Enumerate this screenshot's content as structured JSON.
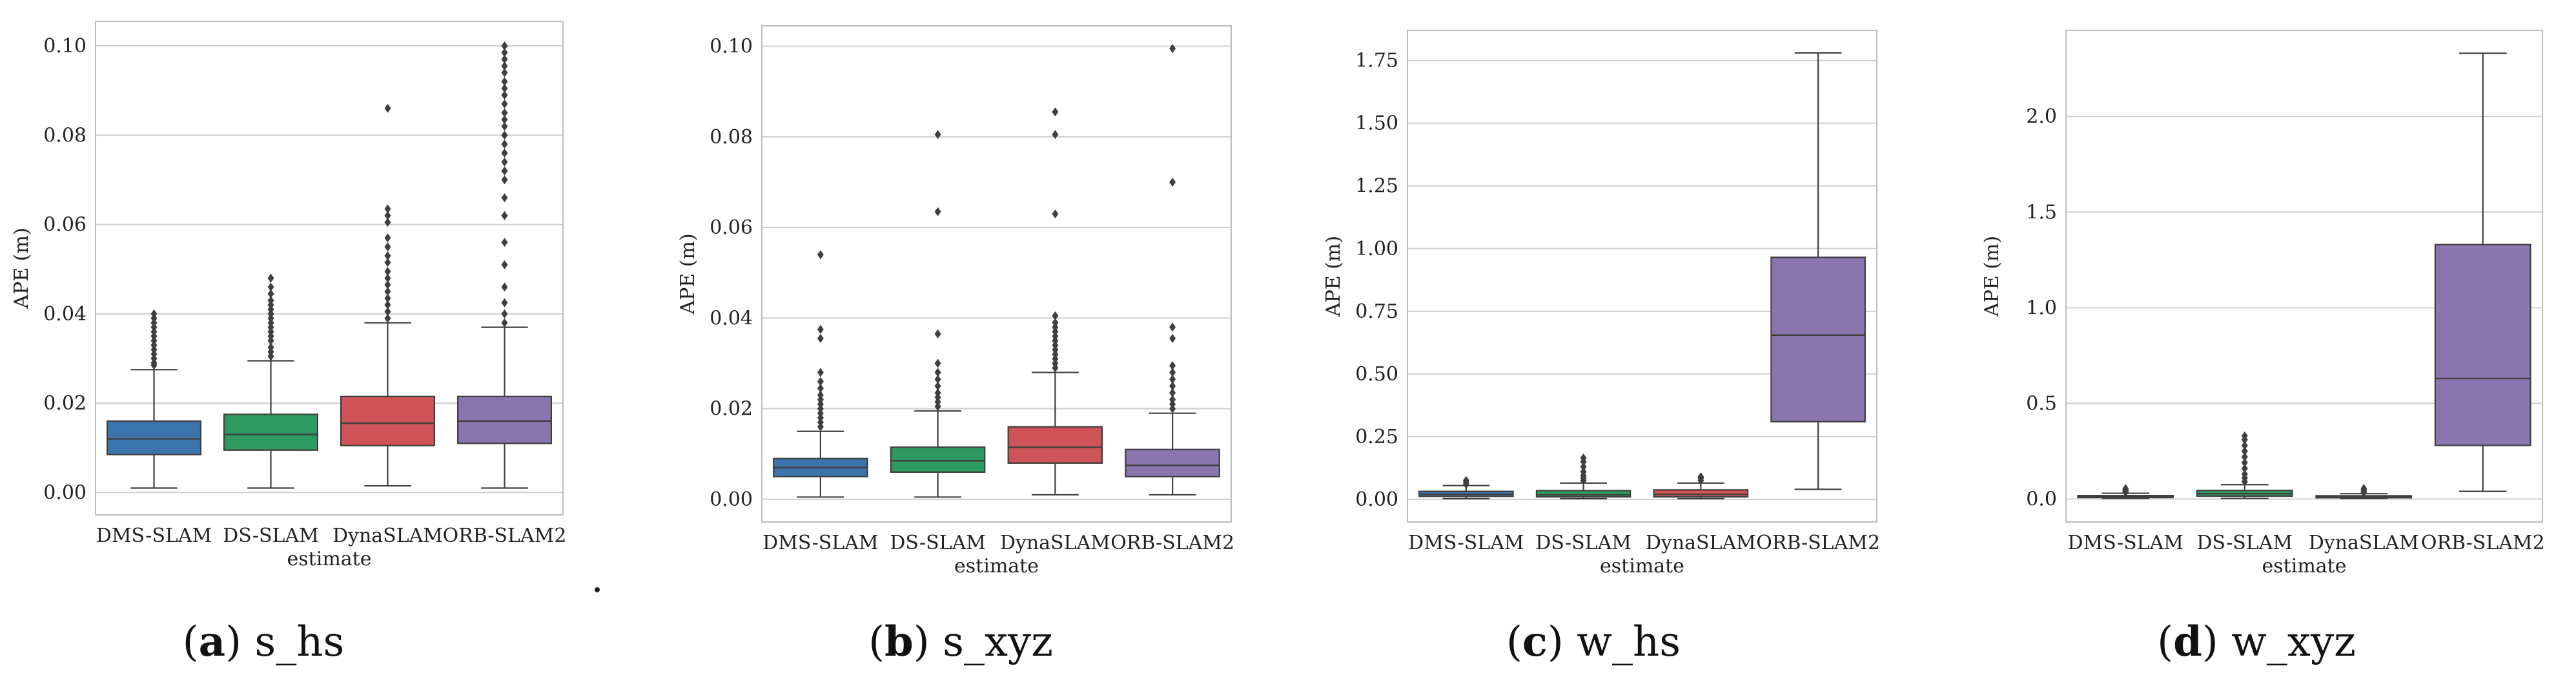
{
  "chart_data": [
    {
      "type": "box",
      "caption_letter": "a",
      "caption_text": "s_hs",
      "xlabel": "estimate",
      "ylabel": "APE (m)",
      "categories": [
        "DMS-SLAM",
        "DS-SLAM",
        "DynaSLAM",
        "ORB-SLAM2"
      ],
      "yticks": [
        "0.00",
        "0.02",
        "0.04",
        "0.06",
        "0.08",
        "0.10"
      ],
      "ylim": [
        -0.005,
        0.1055
      ],
      "series": [
        {
          "name": "DMS-SLAM",
          "color": "#3b74ab",
          "whislo": 0.001,
          "q1": 0.0085,
          "median": 0.012,
          "q3": 0.016,
          "whishi": 0.0275,
          "outliers": [
            0.0285,
            0.029,
            0.03,
            0.031,
            0.032,
            0.033,
            0.034,
            0.035,
            0.036,
            0.037,
            0.038,
            0.039,
            0.04
          ]
        },
        {
          "name": "DS-SLAM",
          "color": "#2e9a62",
          "whislo": 0.001,
          "q1": 0.0095,
          "median": 0.013,
          "q3": 0.0175,
          "whishi": 0.0295,
          "outliers": [
            0.0305,
            0.0315,
            0.0325,
            0.034,
            0.035,
            0.036,
            0.037,
            0.038,
            0.039,
            0.04,
            0.041,
            0.042,
            0.043,
            0.0445,
            0.046,
            0.048
          ]
        },
        {
          "name": "DynaSLAM",
          "color": "#cf5457",
          "whislo": 0.0015,
          "q1": 0.0105,
          "median": 0.0155,
          "q3": 0.0215,
          "whishi": 0.038,
          "outliers": [
            0.039,
            0.0405,
            0.042,
            0.0435,
            0.045,
            0.0465,
            0.048,
            0.0495,
            0.0515,
            0.053,
            0.055,
            0.057,
            0.0605,
            0.062,
            0.0635,
            0.086
          ]
        },
        {
          "name": "ORB-SLAM2",
          "color": "#8976b1",
          "whislo": 0.001,
          "q1": 0.011,
          "median": 0.016,
          "q3": 0.0215,
          "whishi": 0.037,
          "outliers": [
            0.038,
            0.04,
            0.0425,
            0.046,
            0.051,
            0.056,
            0.062,
            0.066,
            0.07,
            0.072,
            0.074,
            0.076,
            0.078,
            0.08,
            0.082,
            0.0835,
            0.085,
            0.087,
            0.089,
            0.0905,
            0.092,
            0.094,
            0.0955,
            0.097,
            0.0985,
            0.1
          ]
        }
      ]
    },
    {
      "type": "box",
      "caption_letter": "b",
      "caption_text": "s_xyz",
      "xlabel": "estimate",
      "ylabel": "APE (m)",
      "categories": [
        "DMS-SLAM",
        "DS-SLAM",
        "DynaSLAM",
        "ORB-SLAM2"
      ],
      "yticks": [
        "0.00",
        "0.02",
        "0.04",
        "0.06",
        "0.08",
        "0.10"
      ],
      "ylim": [
        -0.005,
        0.1045
      ],
      "series": [
        {
          "name": "DMS-SLAM",
          "color": "#3b74ab",
          "whislo": 0.0005,
          "q1": 0.005,
          "median": 0.007,
          "q3": 0.009,
          "whishi": 0.015,
          "outliers": [
            0.016,
            0.017,
            0.018,
            0.019,
            0.02,
            0.021,
            0.022,
            0.023,
            0.0245,
            0.026,
            0.028,
            0.0355,
            0.0375,
            0.054
          ]
        },
        {
          "name": "DS-SLAM",
          "color": "#2e9a62",
          "whislo": 0.0005,
          "q1": 0.006,
          "median": 0.0085,
          "q3": 0.0115,
          "whishi": 0.0195,
          "outliers": [
            0.0205,
            0.0215,
            0.0225,
            0.0235,
            0.025,
            0.0265,
            0.028,
            0.03,
            0.0365,
            0.0635,
            0.0805
          ]
        },
        {
          "name": "DynaSLAM",
          "color": "#cf5457",
          "whislo": 0.001,
          "q1": 0.008,
          "median": 0.0115,
          "q3": 0.016,
          "whishi": 0.028,
          "outliers": [
            0.029,
            0.03,
            0.031,
            0.032,
            0.033,
            0.034,
            0.035,
            0.036,
            0.037,
            0.038,
            0.039,
            0.0405,
            0.063,
            0.0805,
            0.0855
          ]
        },
        {
          "name": "ORB-SLAM2",
          "color": "#8976b1",
          "whislo": 0.001,
          "q1": 0.005,
          "median": 0.0075,
          "q3": 0.011,
          "whishi": 0.019,
          "outliers": [
            0.02,
            0.021,
            0.022,
            0.0235,
            0.025,
            0.0265,
            0.028,
            0.0295,
            0.0355,
            0.038,
            0.07,
            0.0995
          ]
        }
      ]
    },
    {
      "type": "box",
      "caption_letter": "c",
      "caption_text": "w_hs",
      "xlabel": "estimate",
      "ylabel": "APE (m)",
      "categories": [
        "DMS-SLAM",
        "DS-SLAM",
        "DynaSLAM",
        "ORB-SLAM2"
      ],
      "yticks": [
        "0.00",
        "0.25",
        "0.50",
        "0.75",
        "1.00",
        "1.25",
        "1.50",
        "1.75"
      ],
      "ylim": [
        -0.09,
        1.87
      ],
      "series": [
        {
          "name": "DMS-SLAM",
          "color": "#3b74ab",
          "whislo": 0.003,
          "q1": 0.012,
          "median": 0.02,
          "q3": 0.032,
          "whishi": 0.055,
          "outliers": [
            0.06,
            0.068,
            0.075
          ]
        },
        {
          "name": "DS-SLAM",
          "color": "#2e9a62",
          "whislo": 0.003,
          "q1": 0.01,
          "median": 0.018,
          "q3": 0.035,
          "whishi": 0.065,
          "outliers": [
            0.075,
            0.085,
            0.095,
            0.11,
            0.13,
            0.15,
            0.165
          ]
        },
        {
          "name": "DynaSLAM",
          "color": "#cf5457",
          "whislo": 0.003,
          "q1": 0.01,
          "median": 0.02,
          "q3": 0.038,
          "whishi": 0.065,
          "outliers": [
            0.075,
            0.085,
            0.09
          ]
        },
        {
          "name": "ORB-SLAM2",
          "color": "#8976b1",
          "whislo": 0.04,
          "q1": 0.31,
          "median": 0.655,
          "q3": 0.965,
          "whishi": 1.78,
          "outliers": []
        }
      ]
    },
    {
      "type": "box",
      "caption_letter": "d",
      "caption_text": "w_xyz",
      "xlabel": "estimate",
      "ylabel": "APE (m)",
      "categories": [
        "DMS-SLAM",
        "DS-SLAM",
        "DynaSLAM",
        "ORB-SLAM2"
      ],
      "yticks": [
        "0.0",
        "0.5",
        "1.0",
        "1.5",
        "2.0"
      ],
      "ylim": [
        -0.12,
        2.45
      ],
      "series": [
        {
          "name": "DMS-SLAM",
          "color": "#3b74ab",
          "whislo": 0.003,
          "q1": 0.008,
          "median": 0.012,
          "q3": 0.018,
          "whishi": 0.03,
          "outliers": [
            0.035,
            0.042,
            0.05,
            0.055
          ]
        },
        {
          "name": "DS-SLAM",
          "color": "#2e9a62",
          "whislo": 0.003,
          "q1": 0.015,
          "median": 0.028,
          "q3": 0.045,
          "whishi": 0.075,
          "outliers": [
            0.09,
            0.11,
            0.13,
            0.16,
            0.19,
            0.22,
            0.25,
            0.28,
            0.31,
            0.33
          ]
        },
        {
          "name": "DynaSLAM",
          "color": "#cf5457",
          "whislo": 0.003,
          "q1": 0.007,
          "median": 0.011,
          "q3": 0.017,
          "whishi": 0.028,
          "outliers": [
            0.035,
            0.045,
            0.055
          ]
        },
        {
          "name": "ORB-SLAM2",
          "color": "#8976b1",
          "whislo": 0.04,
          "q1": 0.28,
          "median": 0.63,
          "q3": 1.33,
          "whishi": 2.33,
          "outliers": []
        }
      ]
    }
  ]
}
